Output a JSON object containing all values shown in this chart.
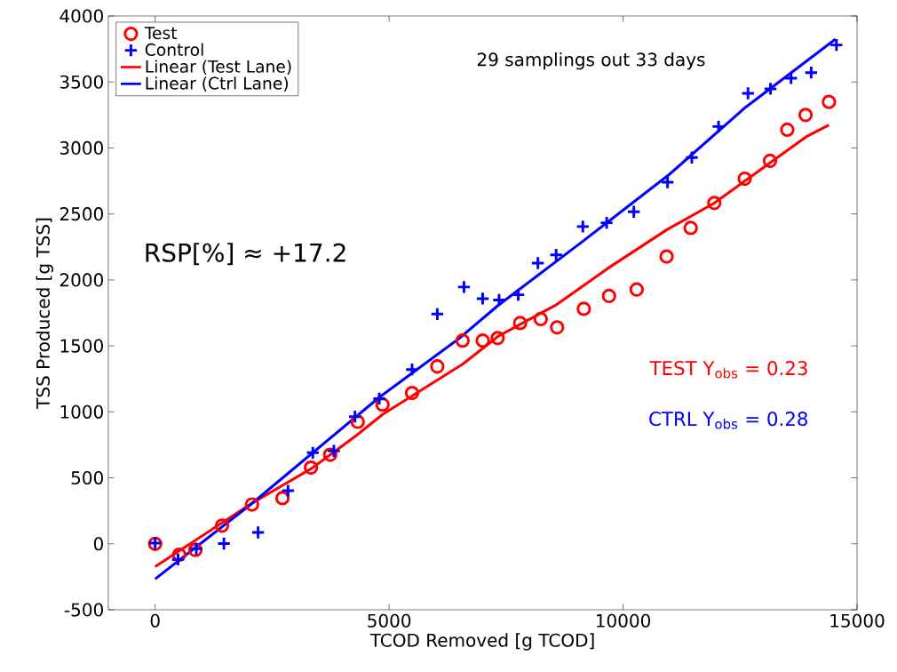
{
  "chart_data": {
    "type": "scatter",
    "xlabel": "TCOD Removed [g TCOD]",
    "ylabel": "TSS Produced [g TSS]",
    "xlim": [
      -1000,
      15000
    ],
    "xticks": [
      0,
      5000,
      10000,
      15000
    ],
    "ylim": [
      -500,
      4000
    ],
    "yticks": [
      -500,
      0,
      500,
      1000,
      1500,
      2000,
      2500,
      3000,
      3500,
      4000
    ],
    "legend": "top left",
    "annotations": [
      "29 samplings out 33 days",
      "RSP[%] ≈ +17.2",
      "TEST Y$_{obs}$ = 0.23",
      "CTRL Y$_{obs}$ = 0.28"
    ],
    "series": [
      {
        "name": "Test",
        "marker": "circle",
        "color": "#ff0000",
        "x": [
          0,
          515,
          860,
          1430,
          2070,
          2720,
          3330,
          3740,
          4330,
          4860,
          5490,
          6030,
          6570,
          7000,
          7320,
          7800,
          8240,
          8590,
          9160,
          9700,
          10290,
          10930,
          11445,
          11950,
          12600,
          13140,
          13510,
          13900,
          14400
        ],
        "values": [
          0,
          -83,
          -47,
          138,
          298,
          346,
          577,
          675,
          925,
          1055,
          1143,
          1344,
          1540,
          1540,
          1559,
          1673,
          1703,
          1640,
          1781,
          1878,
          1927,
          2177,
          2394,
          2583,
          2767,
          2902,
          3138,
          3250,
          3349
        ]
      },
      {
        "name": "Control",
        "marker": "cross",
        "color": "#0000ff",
        "x": [
          0,
          490,
          880,
          1470,
          2200,
          2840,
          3370,
          3820,
          4270,
          4790,
          5490,
          6030,
          6600,
          7000,
          7350,
          7760,
          8180,
          8570,
          9140,
          9650,
          10230,
          10950,
          11470,
          12040,
          12670,
          13150,
          13590,
          14020,
          14560
        ],
        "values": [
          5,
          -119,
          -37,
          2,
          86,
          402,
          690,
          704,
          964,
          1100,
          1321,
          1741,
          1946,
          1858,
          1848,
          1887,
          2127,
          2190,
          2404,
          2433,
          2516,
          2740,
          2927,
          3162,
          3414,
          3448,
          3529,
          3571,
          3780
        ]
      },
      {
        "name": "Linear (Test Lane)",
        "type": "line",
        "marker": "none",
        "line_style": "solid",
        "color": "#ff0000",
        "x": [
          0,
          2050,
          3330,
          4280,
          4860,
          6570,
          7320,
          8590,
          9660,
          10930,
          11940,
          13910,
          14400
        ],
        "values": [
          -173,
          303,
          568,
          815,
          980,
          1361,
          1570,
          1815,
          2084,
          2379,
          2580,
          3084,
          3174
        ]
      },
      {
        "name": "Linear (Ctrl Lane)",
        "type": "line",
        "marker": "none",
        "line_style": "solid",
        "color": "#0000ff",
        "x": [
          0,
          2050,
          2880,
          4790,
          6500,
          7320,
          9160,
          11000,
          12580,
          14540
        ],
        "values": [
          -267,
          300,
          546,
          1110,
          1557,
          1804,
          2298,
          2803,
          3297,
          3825
        ]
      }
    ]
  }
}
